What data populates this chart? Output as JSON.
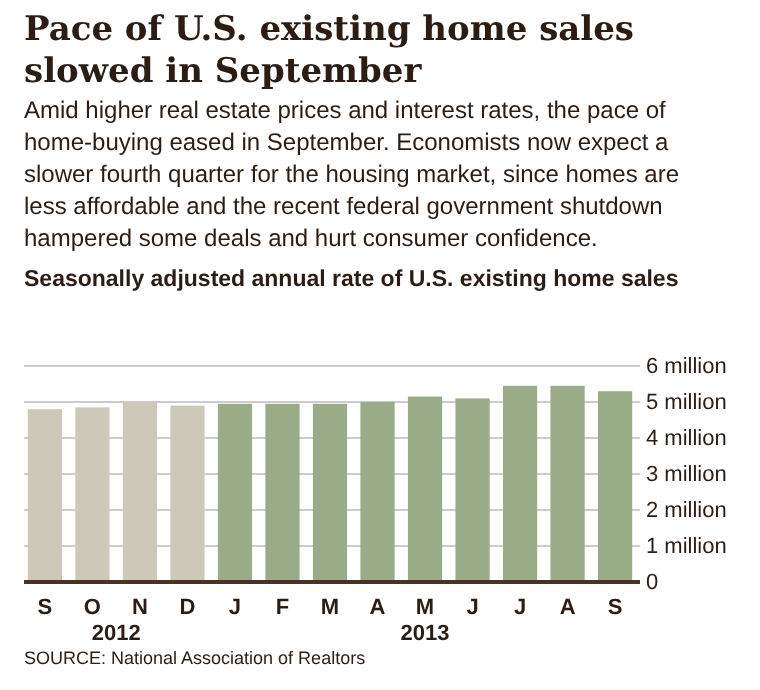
{
  "chart_data": {
    "type": "bar",
    "title": "Pace of U.S. existing home sales slowed in September",
    "subtitle": "Amid higher real estate prices and interest rates, the pace of home-buying eased in September. Economists now expect a slower fourth quarter for the housing market, since homes are less affordable and the recent federal government shutdown hampered some deals and hurt consumer confidence.",
    "ylabel": "Seasonally adjusted annual rate of U.S. existing home sales",
    "categories": [
      "S",
      "O",
      "N",
      "D",
      "J",
      "F",
      "M",
      "A",
      "M",
      "J",
      "J",
      "A",
      "S"
    ],
    "values": [
      4.8,
      4.85,
      5.0,
      4.9,
      4.95,
      4.95,
      4.95,
      5.0,
      5.15,
      5.1,
      5.45,
      5.45,
      5.3
    ],
    "colors": [
      "#cdc9b8",
      "#cdc9b8",
      "#cdc9b8",
      "#cdc9b8",
      "#9aab88",
      "#9aab88",
      "#9aab88",
      "#9aab88",
      "#9aab88",
      "#9aab88",
      "#9aab88",
      "#9aab88",
      "#9aab88"
    ],
    "ylim": [
      0,
      6
    ],
    "yticks": [
      0,
      {
        "value": 1,
        "label": "1 million"
      },
      {
        "value": 2,
        "label": "2 million"
      },
      {
        "value": 3,
        "label": "3 million"
      },
      {
        "value": 4,
        "label": "4 million"
      },
      {
        "value": 5,
        "label": "5 million"
      },
      {
        "value": 6,
        "label": "6 million"
      }
    ],
    "grid": "y",
    "annotations": [
      "2012",
      "2013",
      "SOURCE: National Association of Realtors"
    ]
  }
}
